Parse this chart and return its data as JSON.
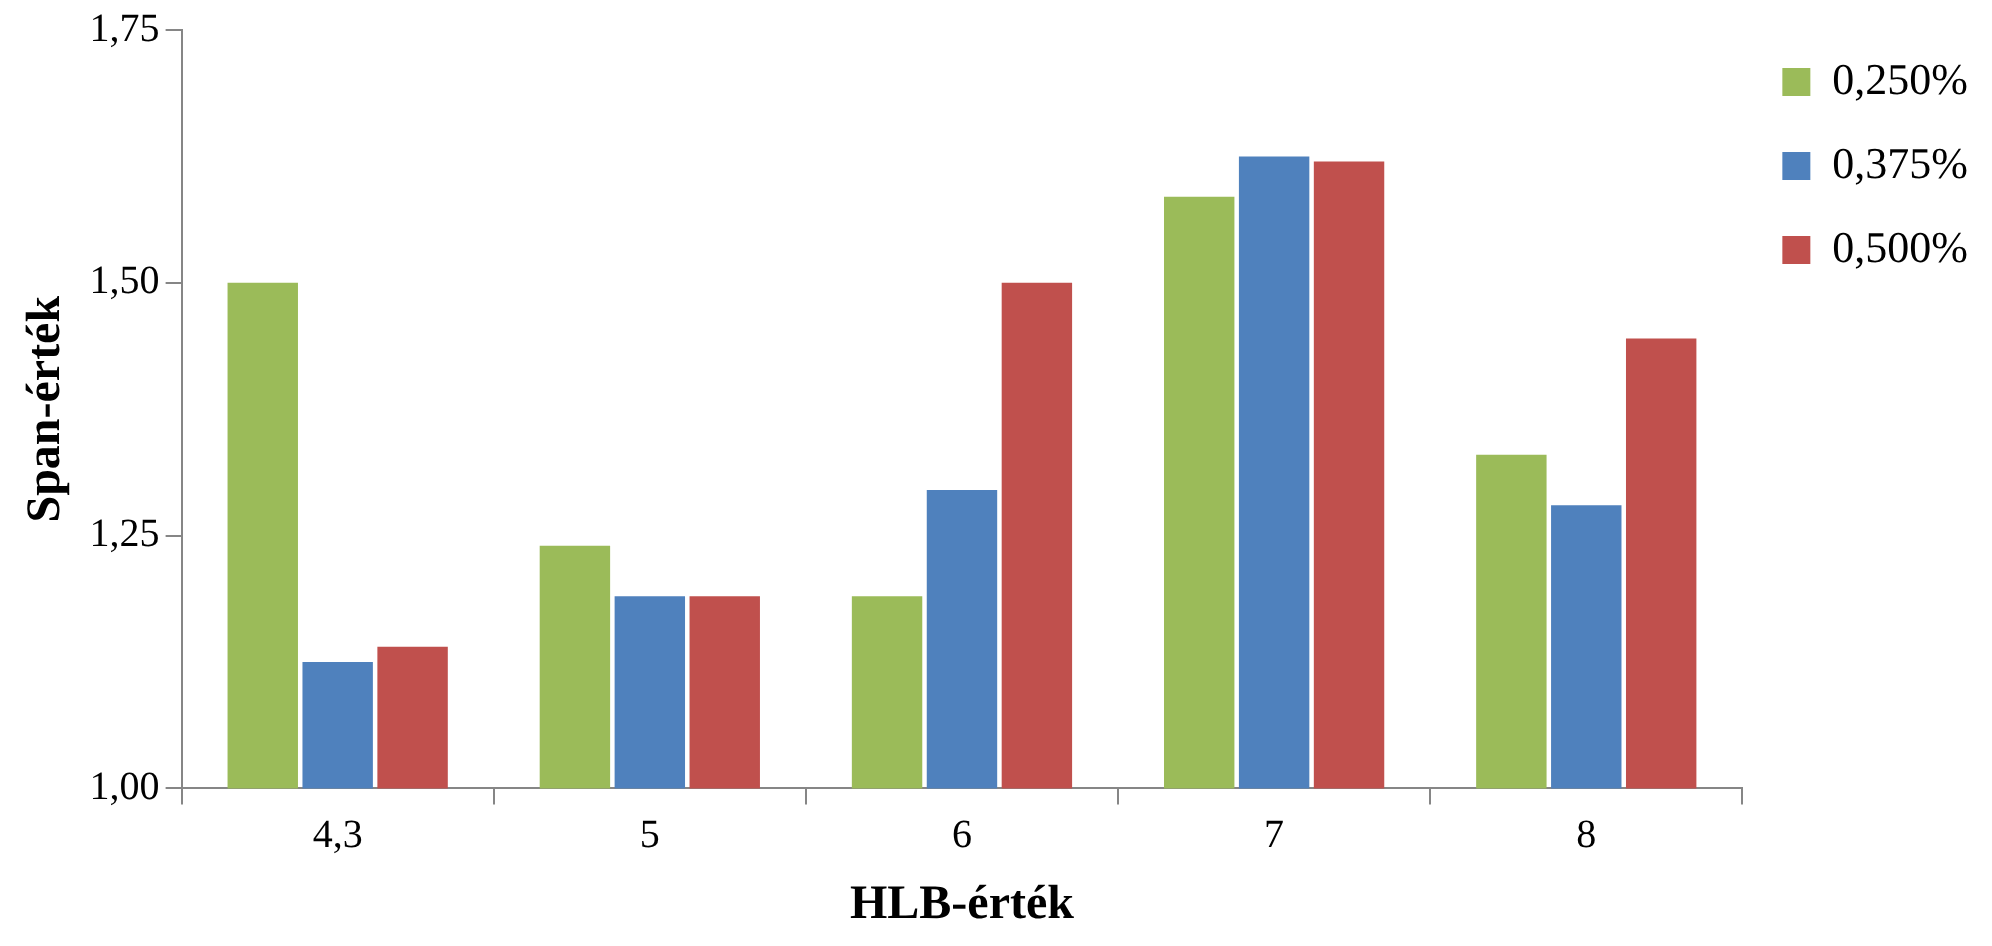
{
  "chart_data": {
    "type": "bar",
    "xlabel": "HLB-érték",
    "ylabel": "Span-érték",
    "categories": [
      "4,3",
      "5",
      "6",
      "7",
      "8"
    ],
    "series": [
      {
        "name": "0,250%",
        "color": "#9bbb59",
        "values": [
          1.5,
          1.24,
          1.19,
          1.585,
          1.33
        ]
      },
      {
        "name": "0,375%",
        "color": "#4f81bd",
        "values": [
          1.125,
          1.19,
          1.295,
          1.625,
          1.28
        ]
      },
      {
        "name": "0,500%",
        "color": "#c0504d",
        "values": [
          1.14,
          1.19,
          1.5,
          1.62,
          1.445
        ]
      }
    ],
    "ylim": [
      1,
      1.75
    ],
    "yticks": [
      {
        "value": 1,
        "label": "1,00"
      },
      {
        "value": 1.25,
        "label": "1,25"
      },
      {
        "value": 1.5,
        "label": "1,50"
      },
      {
        "value": 1.75,
        "label": "1,75"
      }
    ],
    "grid": false,
    "legend": "top right"
  }
}
